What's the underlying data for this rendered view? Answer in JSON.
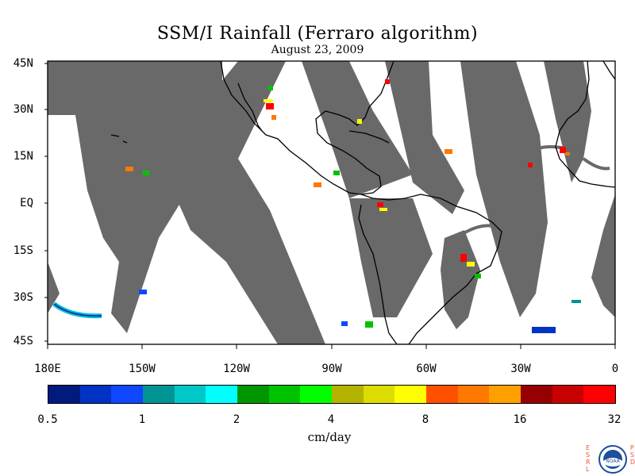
{
  "title": "SSM/I Rainfall (Ferraro algorithm)",
  "subtitle": "August 23, 2009",
  "lat_labels": [
    "45N",
    "30N",
    "15N",
    "EQ",
    "15S",
    "30S",
    "45S"
  ],
  "lon_labels": [
    "180E",
    "150W",
    "120W",
    "90W",
    "60W",
    "30W",
    "0"
  ],
  "colorbar": {
    "ticks": [
      "0.5",
      "1",
      "2",
      "4",
      "8",
      "16",
      "32"
    ],
    "units": "cm/day",
    "colors": [
      "#001b7d",
      "#0033c4",
      "#0f47ff",
      "#009495",
      "#00c8c8",
      "#00ffff",
      "#009600",
      "#00c300",
      "#00fe00",
      "#b4b400",
      "#dcdc00",
      "#ffff00",
      "#ff5000",
      "#ff7800",
      "#ffa000",
      "#960000",
      "#c80000",
      "#ff0000"
    ]
  },
  "logo": {
    "left_letters": [
      "E",
      "S",
      "R",
      "L"
    ],
    "right_letters": [
      "P",
      "S",
      "D"
    ],
    "name": "NOAA"
  },
  "colors": {
    "swath_gap": "#696969",
    "coastline": "#000000",
    "ocean": "#ffffff"
  }
}
